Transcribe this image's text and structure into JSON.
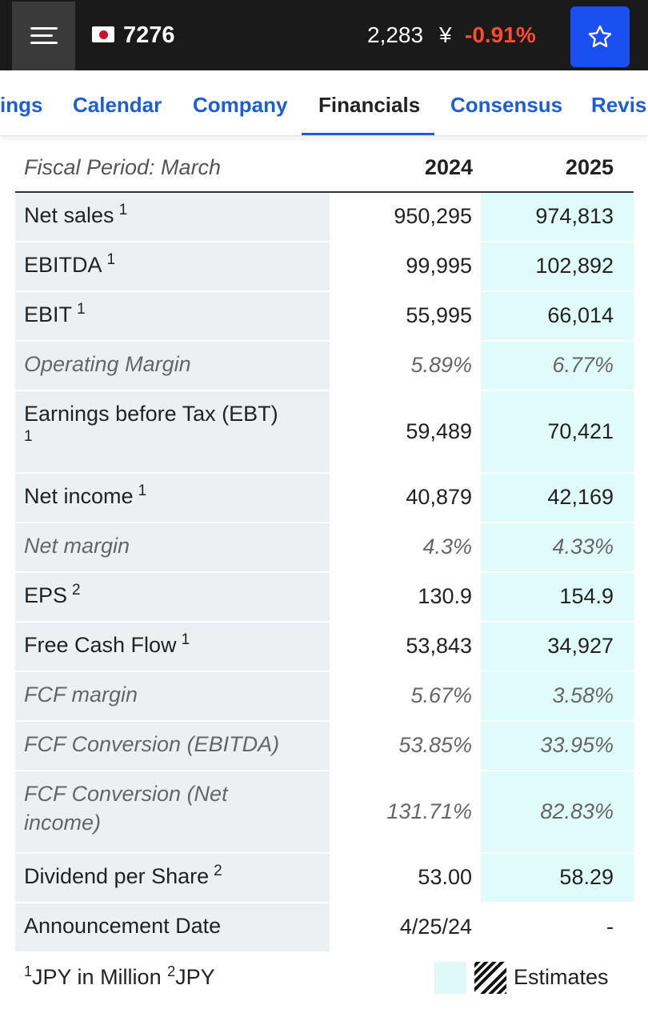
{
  "header": {
    "ticker": "7276",
    "price": "2,283",
    "currency": "¥",
    "change": "-0.91%"
  },
  "tabs": [
    {
      "label": "ings"
    },
    {
      "label": "Calendar"
    },
    {
      "label": "Company"
    },
    {
      "label": "Financials"
    },
    {
      "label": "Consensus"
    },
    {
      "label": "Revisi"
    }
  ],
  "table": {
    "period_label": "Fiscal Period: March",
    "years": [
      "2024",
      "2025"
    ],
    "rows": [
      {
        "label": "Net sales",
        "note": "1",
        "v1": "950,295",
        "v2": "974,813"
      },
      {
        "label": "EBITDA",
        "note": "1",
        "v1": "99,995",
        "v2": "102,892"
      },
      {
        "label": "EBIT",
        "note": "1",
        "v1": "55,995",
        "v2": "66,014"
      },
      {
        "label": "Operating Margin",
        "note": "",
        "v1": "5.89%",
        "v2": "6.77%"
      },
      {
        "label": "Earnings before Tax (EBT)",
        "note": "1",
        "v1": "59,489",
        "v2": "70,421"
      },
      {
        "label": "Net income",
        "note": "1",
        "v1": "40,879",
        "v2": "42,169"
      },
      {
        "label": "Net margin",
        "note": "",
        "v1": "4.3%",
        "v2": "4.33%"
      },
      {
        "label": "EPS",
        "note": "2",
        "v1": "130.9",
        "v2": "154.9"
      },
      {
        "label": "Free Cash Flow",
        "note": "1",
        "v1": "53,843",
        "v2": "34,927"
      },
      {
        "label": "FCF margin",
        "note": "",
        "v1": "5.67%",
        "v2": "3.58%"
      },
      {
        "label": "FCF Conversion (EBITDA)",
        "note": "",
        "v1": "53.85%",
        "v2": "33.95%"
      },
      {
        "label": "FCF Conversion (Net income)",
        "note": "",
        "v1": "131.71%",
        "v2": "82.83%"
      },
      {
        "label": "Dividend per Share",
        "note": "2",
        "v1": "53.00",
        "v2": "58.29"
      },
      {
        "label": "Announcement Date",
        "note": "",
        "v1": "4/25/24",
        "v2": "-"
      }
    ]
  },
  "footnotes": {
    "n1": "1",
    "t1": "JPY in Million",
    "n2": "2",
    "t2": "JPY"
  },
  "legend": {
    "label": "Estimates"
  }
}
